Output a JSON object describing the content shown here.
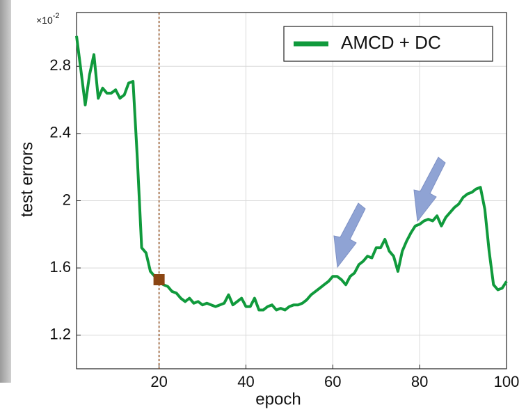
{
  "chart_data": {
    "type": "line",
    "x_label": "epoch",
    "y_label": "test errors",
    "y_multiplier": {
      "base": "×10",
      "exponent": "-2"
    },
    "x": [
      1,
      2,
      3,
      4,
      5,
      6,
      7,
      8,
      9,
      10,
      11,
      12,
      13,
      14,
      15,
      16,
      17,
      18,
      19,
      20,
      21,
      22,
      23,
      24,
      25,
      26,
      27,
      28,
      29,
      30,
      31,
      32,
      33,
      34,
      35,
      36,
      37,
      38,
      39,
      40,
      41,
      42,
      43,
      44,
      45,
      46,
      47,
      48,
      49,
      50,
      51,
      52,
      53,
      54,
      55,
      56,
      57,
      58,
      59,
      60,
      61,
      62,
      63,
      64,
      65,
      66,
      67,
      68,
      69,
      70,
      71,
      72,
      73,
      74,
      75,
      76,
      77,
      78,
      79,
      80,
      81,
      82,
      83,
      84,
      85,
      86,
      87,
      88,
      89,
      90,
      91,
      92,
      93,
      94,
      95,
      96,
      97,
      98,
      99,
      100
    ],
    "series": [
      {
        "name": "AMCD + DC",
        "color": "#109a3c",
        "values": [
          2.98,
          2.78,
          2.57,
          2.75,
          2.87,
          2.61,
          2.67,
          2.64,
          2.64,
          2.66,
          2.61,
          2.63,
          2.7,
          2.71,
          2.25,
          1.72,
          1.69,
          1.58,
          1.55,
          1.53,
          1.5,
          1.49,
          1.46,
          1.45,
          1.42,
          1.4,
          1.42,
          1.39,
          1.4,
          1.38,
          1.39,
          1.38,
          1.37,
          1.38,
          1.39,
          1.44,
          1.38,
          1.4,
          1.42,
          1.37,
          1.37,
          1.42,
          1.35,
          1.35,
          1.37,
          1.38,
          1.35,
          1.36,
          1.35,
          1.37,
          1.38,
          1.38,
          1.39,
          1.41,
          1.44,
          1.46,
          1.48,
          1.5,
          1.52,
          1.55,
          1.55,
          1.53,
          1.5,
          1.55,
          1.57,
          1.62,
          1.64,
          1.67,
          1.66,
          1.72,
          1.72,
          1.77,
          1.7,
          1.67,
          1.58,
          1.7,
          1.76,
          1.81,
          1.85,
          1.86,
          1.88,
          1.89,
          1.88,
          1.91,
          1.85,
          1.9,
          1.93,
          1.96,
          1.98,
          2.02,
          2.04,
          2.05,
          2.07,
          2.08,
          1.95,
          1.7,
          1.5,
          1.47,
          1.48,
          1.52
        ]
      }
    ],
    "highlight": {
      "x": 20,
      "y": 1.53,
      "color": "#8b4513"
    },
    "xlim": [
      1,
      100
    ],
    "ylim": [
      1.0,
      3.12
    ],
    "xticks": [
      20,
      40,
      60,
      80,
      100
    ],
    "yticks": [
      1.2,
      1.6,
      2,
      2.4,
      2.8
    ],
    "grid": true,
    "legend": "top-right"
  }
}
